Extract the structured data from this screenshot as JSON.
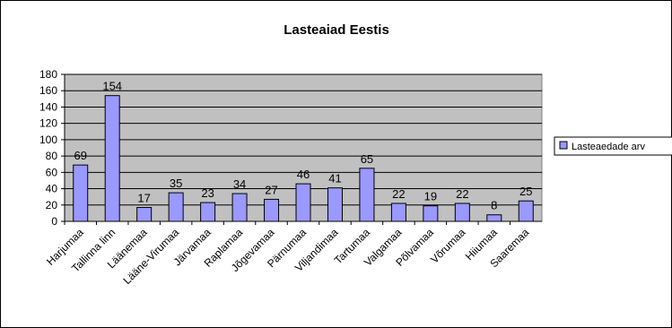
{
  "chart_data": {
    "type": "bar",
    "title": "Lasteaiad Eestis",
    "xlabel": "",
    "ylabel": "",
    "categories": [
      "Harjumaa",
      "Tallinna linn",
      "Läänemaa",
      "Lääne-Virumaa",
      "Järvamaa",
      "Raplamaa",
      "Jõgevamaa",
      "Pärnumaa",
      "Viljandimaa",
      "Tartumaa",
      "Valgamaa",
      "Põlvamaa",
      "Võrumaa",
      "Hiiumaa",
      "Saaremaa"
    ],
    "series": [
      {
        "name": "Lasteaedade arv",
        "values": [
          69,
          154,
          17,
          35,
          23,
          34,
          27,
          46,
          41,
          65,
          22,
          19,
          22,
          8,
          25
        ]
      }
    ],
    "ylim": [
      0,
      180
    ],
    "yticks": [
      0,
      20,
      40,
      60,
      80,
      100,
      120,
      140,
      160,
      180
    ],
    "grid": true,
    "legend_position": "right",
    "colors": {
      "bar_fill": "#9999ff",
      "bar_stroke": "#000000",
      "plot_bg": "#c0c0c0",
      "grid": "#000000"
    }
  }
}
